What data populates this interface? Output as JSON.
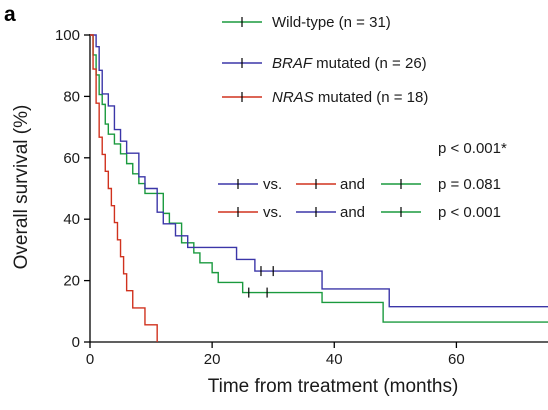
{
  "chart_data": {
    "type": "line",
    "panel_label": "a",
    "xlabel": "Time from treatment (months)",
    "ylabel": "Overall survival (%)",
    "xlim": [
      0,
      75
    ],
    "ylim": [
      0,
      100
    ],
    "xticks": [
      0,
      20,
      40,
      60
    ],
    "yticks": [
      0,
      20,
      40,
      60,
      80,
      100
    ],
    "grid": false,
    "legend_position": "top-center",
    "series": [
      {
        "name_parts": [
          {
            "text": "Wild-type (n = 31)",
            "italic": false
          }
        ],
        "color": "#1a9a3e",
        "steps": [
          [
            0,
            100
          ],
          [
            0.5,
            93.5
          ],
          [
            1,
            87
          ],
          [
            1.5,
            80.6
          ],
          [
            2,
            77.4
          ],
          [
            2.5,
            71
          ],
          [
            3,
            67.7
          ],
          [
            4,
            64.5
          ],
          [
            5,
            61.3
          ],
          [
            6,
            58.1
          ],
          [
            7,
            54.8
          ],
          [
            8,
            51.6
          ],
          [
            9,
            48.4
          ],
          [
            12,
            41.9
          ],
          [
            13,
            38.7
          ],
          [
            15,
            32.3
          ],
          [
            17,
            29
          ],
          [
            18,
            25.8
          ],
          [
            20,
            22.6
          ],
          [
            21,
            19.4
          ],
          [
            25,
            16.1
          ],
          [
            38,
            12.9
          ],
          [
            48,
            6.5
          ]
        ],
        "end_x": 75,
        "censor": [
          [
            26,
            16.1
          ],
          [
            29,
            16.1
          ]
        ]
      },
      {
        "name_parts": [
          {
            "text": "BRAF",
            "italic": true
          },
          {
            "text": " mutated (n = 26)",
            "italic": false
          }
        ],
        "color": "#3b36a8",
        "steps": [
          [
            0,
            100
          ],
          [
            1,
            96.2
          ],
          [
            1.5,
            88.5
          ],
          [
            2,
            80.8
          ],
          [
            3,
            76.9
          ],
          [
            4,
            69.2
          ],
          [
            5,
            65.4
          ],
          [
            6,
            61.5
          ],
          [
            8,
            53.8
          ],
          [
            9,
            50
          ],
          [
            11,
            42.3
          ],
          [
            12,
            38.5
          ],
          [
            14,
            34.6
          ],
          [
            16,
            30.8
          ],
          [
            24,
            26.9
          ],
          [
            27,
            23.1
          ],
          [
            38,
            17.3
          ],
          [
            49,
            11.5
          ]
        ],
        "end_x": 75,
        "censor": [
          [
            28,
            23.1
          ],
          [
            30,
            23.1
          ]
        ]
      },
      {
        "name_parts": [
          {
            "text": "NRAS",
            "italic": true
          },
          {
            "text": " mutated (n = 18)",
            "italic": false
          }
        ],
        "color": "#d0321e",
        "steps": [
          [
            0,
            100
          ],
          [
            0.5,
            88.9
          ],
          [
            1,
            77.8
          ],
          [
            1.5,
            66.7
          ],
          [
            2,
            61.1
          ],
          [
            2.5,
            55.6
          ],
          [
            3,
            50
          ],
          [
            3.5,
            44.4
          ],
          [
            4,
            38.9
          ],
          [
            4.5,
            33.3
          ],
          [
            5,
            27.8
          ],
          [
            5.5,
            22.2
          ],
          [
            6,
            16.7
          ],
          [
            7,
            11.1
          ],
          [
            9,
            5.6
          ],
          [
            11,
            0
          ]
        ],
        "end_x": 11,
        "censor": []
      }
    ],
    "stats": [
      {
        "label": "p < 0.001*"
      },
      {
        "compare": [
          "BRAF",
          "NRAS",
          "Wild-type"
        ],
        "vs_text": "vs.",
        "and_text": "and",
        "label": "p = 0.081"
      },
      {
        "compare": [
          "NRAS",
          "BRAF",
          "Wild-type"
        ],
        "vs_text": "vs.",
        "and_text": "and",
        "label": "p < 0.001"
      }
    ]
  }
}
